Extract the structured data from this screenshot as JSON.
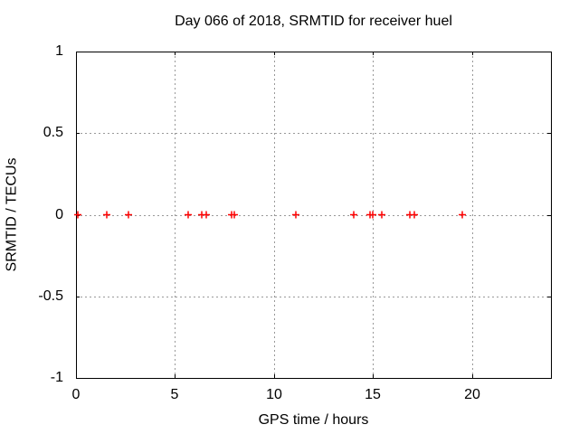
{
  "chart_data": {
    "type": "scatter",
    "title": "Day 066 of 2018, SRMTID for receiver huel",
    "xlabel": "GPS time / hours",
    "ylabel": "SRMTID / TECUs",
    "xlim": [
      0,
      24
    ],
    "ylim": [
      -1,
      1
    ],
    "xticks": [
      0,
      5,
      10,
      15,
      20
    ],
    "yticks": [
      1,
      0.5,
      0,
      -0.5,
      -1
    ],
    "grid": true,
    "legend": "none",
    "marker": "plus",
    "marker_color": "#ff0000",
    "grid_color": "#999999",
    "border_color": "#000000",
    "series": [
      {
        "x": [
          0.1,
          1.55,
          2.65,
          5.65,
          6.35,
          6.6,
          7.85,
          8.0,
          11.1,
          14.05,
          14.85,
          15.0,
          15.45,
          16.85,
          17.1,
          19.5
        ],
        "y": [
          0,
          0,
          0,
          0,
          0,
          0,
          0,
          0,
          0,
          0,
          0,
          0,
          0,
          0,
          0,
          0
        ]
      }
    ]
  }
}
